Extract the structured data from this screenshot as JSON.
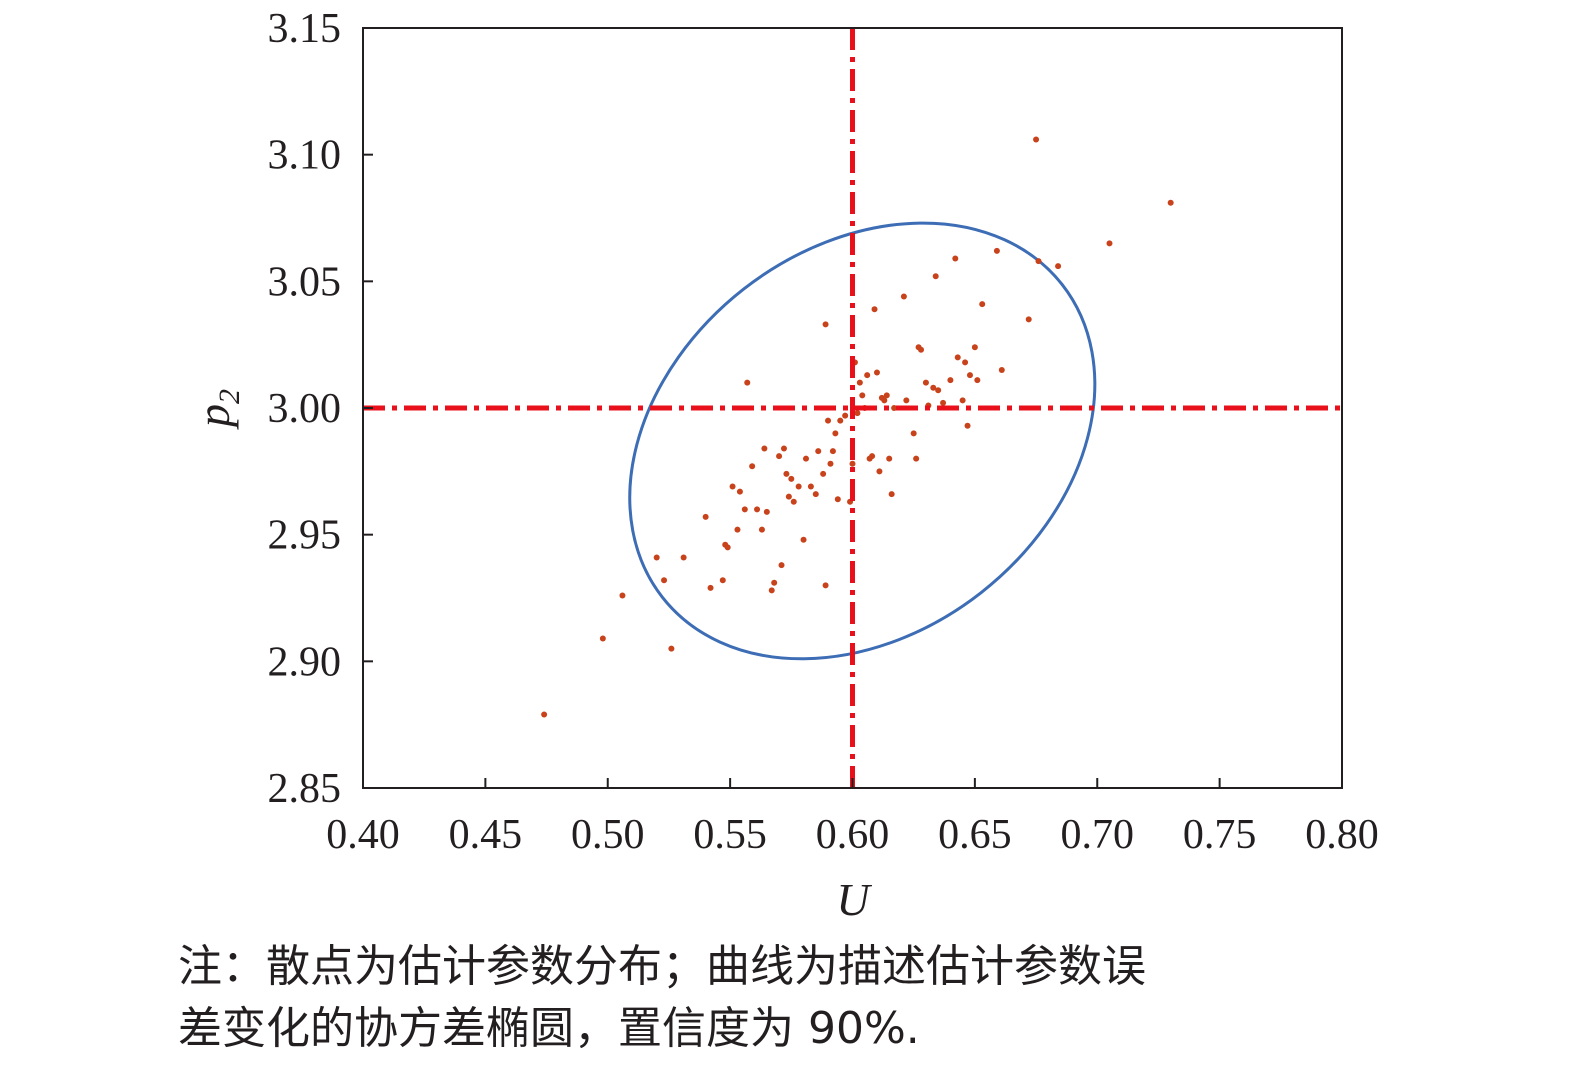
{
  "chart_data": {
    "type": "scatter",
    "xlabel": "U",
    "ylabel": "p",
    "ylabel_subscript": "2",
    "xlim": [
      0.4,
      0.8
    ],
    "ylim": [
      2.85,
      3.15
    ],
    "xticks": [
      "0.40",
      "0.45",
      "0.50",
      "0.55",
      "0.60",
      "0.65",
      "0.70",
      "0.75",
      "0.80"
    ],
    "yticks": [
      "2.85",
      "2.90",
      "2.95",
      "3.00",
      "3.05",
      "3.10",
      "3.15"
    ],
    "reference_lines": {
      "x": 0.6,
      "y": 3.0,
      "color": "#e8101a",
      "style": "dash-dot"
    },
    "ellipse": {
      "color": "#3d6db5",
      "confidence": 0.9,
      "center": [
        0.604,
        2.987
      ],
      "u_extent": [
        0.505,
        0.695
      ],
      "p2_extent": [
        2.901,
        3.073
      ]
    },
    "point_color": "#c8431c",
    "points": [
      [
        0.474,
        2.879
      ],
      [
        0.498,
        2.909
      ],
      [
        0.506,
        2.926
      ],
      [
        0.52,
        2.941
      ],
      [
        0.523,
        2.932
      ],
      [
        0.526,
        2.905
      ],
      [
        0.531,
        2.941
      ],
      [
        0.54,
        2.957
      ],
      [
        0.542,
        2.929
      ],
      [
        0.547,
        2.932
      ],
      [
        0.548,
        2.946
      ],
      [
        0.549,
        2.945
      ],
      [
        0.551,
        2.969
      ],
      [
        0.553,
        2.952
      ],
      [
        0.554,
        2.967
      ],
      [
        0.556,
        2.96
      ],
      [
        0.557,
        3.01
      ],
      [
        0.559,
        2.977
      ],
      [
        0.561,
        2.96
      ],
      [
        0.563,
        2.952
      ],
      [
        0.564,
        2.984
      ],
      [
        0.565,
        2.959
      ],
      [
        0.567,
        2.928
      ],
      [
        0.568,
        2.931
      ],
      [
        0.57,
        2.981
      ],
      [
        0.571,
        2.938
      ],
      [
        0.572,
        2.984
      ],
      [
        0.573,
        2.974
      ],
      [
        0.574,
        2.965
      ],
      [
        0.575,
        2.972
      ],
      [
        0.576,
        2.963
      ],
      [
        0.578,
        2.969
      ],
      [
        0.58,
        2.948
      ],
      [
        0.581,
        2.98
      ],
      [
        0.583,
        2.969
      ],
      [
        0.585,
        2.966
      ],
      [
        0.586,
        2.983
      ],
      [
        0.588,
        2.974
      ],
      [
        0.589,
        2.93
      ],
      [
        0.589,
        3.033
      ],
      [
        0.59,
        2.995
      ],
      [
        0.591,
        2.978
      ],
      [
        0.592,
        2.983
      ],
      [
        0.593,
        2.99
      ],
      [
        0.594,
        2.964
      ],
      [
        0.595,
        2.995
      ],
      [
        0.597,
        2.997
      ],
      [
        0.599,
        2.963
      ],
      [
        0.6,
        2.978
      ],
      [
        0.601,
        3.018
      ],
      [
        0.602,
        2.998
      ],
      [
        0.603,
        3.01
      ],
      [
        0.604,
        3.005
      ],
      [
        0.605,
        3.0
      ],
      [
        0.606,
        3.013
      ],
      [
        0.607,
        2.98
      ],
      [
        0.608,
        2.981
      ],
      [
        0.609,
        3.039
      ],
      [
        0.61,
        3.014
      ],
      [
        0.611,
        2.975
      ],
      [
        0.612,
        3.004
      ],
      [
        0.613,
        3.003
      ],
      [
        0.614,
        3.005
      ],
      [
        0.615,
        2.98
      ],
      [
        0.616,
        2.966
      ],
      [
        0.617,
        3.0
      ],
      [
        0.621,
        3.044
      ],
      [
        0.622,
        3.003
      ],
      [
        0.625,
        2.99
      ],
      [
        0.626,
        2.98
      ],
      [
        0.627,
        3.024
      ],
      [
        0.628,
        3.023
      ],
      [
        0.63,
        3.01
      ],
      [
        0.631,
        3.001
      ],
      [
        0.633,
        3.008
      ],
      [
        0.634,
        3.052
      ],
      [
        0.635,
        3.007
      ],
      [
        0.637,
        3.002
      ],
      [
        0.64,
        3.011
      ],
      [
        0.642,
        3.059
      ],
      [
        0.643,
        3.02
      ],
      [
        0.645,
        3.003
      ],
      [
        0.646,
        3.018
      ],
      [
        0.647,
        2.993
      ],
      [
        0.648,
        3.013
      ],
      [
        0.65,
        3.024
      ],
      [
        0.651,
        3.011
      ],
      [
        0.653,
        3.041
      ],
      [
        0.659,
        3.062
      ],
      [
        0.661,
        3.015
      ],
      [
        0.672,
        3.035
      ],
      [
        0.675,
        3.106
      ],
      [
        0.676,
        3.058
      ],
      [
        0.684,
        3.056
      ],
      [
        0.705,
        3.065
      ],
      [
        0.73,
        3.081
      ]
    ]
  },
  "caption": {
    "line1": "注：散点为估计参数分布；曲线为描述估计参数误",
    "line2": "差变化的协方差椭圆，置信度为 90%."
  }
}
